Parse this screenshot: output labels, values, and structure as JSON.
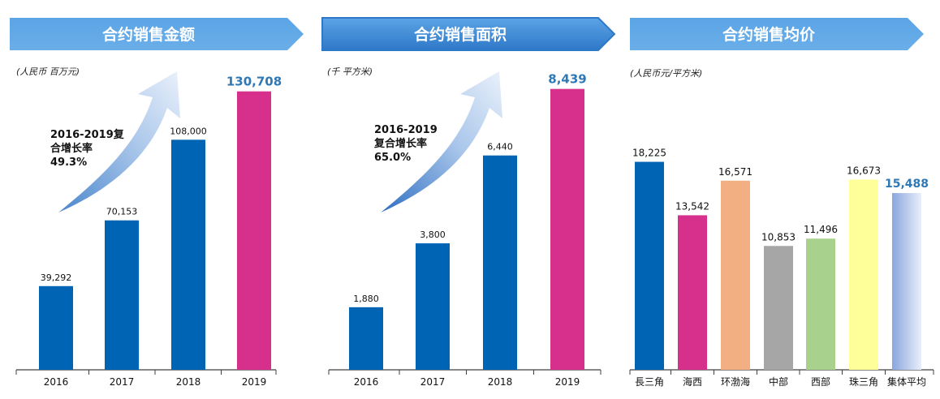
{
  "colors": {
    "header_light": "#5ba4e6",
    "header_dark": "#2f78c8",
    "header_border": "#2f78c8",
    "bar_blue": "#0064b4",
    "bar_pink": "#d6308c",
    "value_highlight": "#2e78b6"
  },
  "panels": [
    {
      "header": "合约销售金额",
      "unit": "(人民币 百万元)",
      "cagr_lines": [
        "2016-2019复",
        "合增长率",
        "49.3%"
      ]
    },
    {
      "header": "合约销售面积",
      "unit": "(千 平方米)",
      "cagr_lines": [
        "2016-2019",
        "复合增长率",
        "65.0%"
      ]
    },
    {
      "header": "合约销售均价",
      "unit": "(人民币元/平方米)",
      "cagr_lines": []
    }
  ],
  "chart_data": [
    {
      "type": "bar",
      "title": "合约销售金额",
      "ylabel": "(人民币 百万元)",
      "categories": [
        "2016",
        "2017",
        "2018",
        "2019"
      ],
      "values": [
        39292,
        70153,
        108000,
        130708
      ],
      "value_labels": [
        "39,292",
        "70,153",
        "108,000",
        "130,708"
      ],
      "bar_colors": [
        "#0064b4",
        "#0064b4",
        "#0064b4",
        "#d6308c"
      ],
      "highlight_last": true,
      "ylim": [
        0,
        150000
      ],
      "grid": false,
      "legend": "none"
    },
    {
      "type": "bar",
      "title": "合约销售面积",
      "ylabel": "(千 平方米)",
      "categories": [
        "2016",
        "2017",
        "2018",
        "2019"
      ],
      "values": [
        1880,
        3800,
        6440,
        8439
      ],
      "value_labels": [
        "1,880",
        "3,800",
        "6,440",
        "8,439"
      ],
      "bar_colors": [
        "#0064b4",
        "#0064b4",
        "#0064b4",
        "#d6308c"
      ],
      "highlight_last": true,
      "ylim": [
        0,
        9600
      ],
      "grid": false,
      "legend": "none"
    },
    {
      "type": "bar",
      "title": "合约销售均价",
      "ylabel": "(人民币元/平方米)",
      "categories": [
        "長三角",
        "海西",
        "环渤海",
        "中部",
        "西部",
        "珠三角",
        "集体平均"
      ],
      "values": [
        18225,
        13542,
        16571,
        10853,
        11496,
        16673,
        15488
      ],
      "value_labels": [
        "18,225",
        "13,542",
        "16,571",
        "10,853",
        "11,496",
        "16,673",
        "15,488"
      ],
      "bar_colors": [
        "#0064b4",
        "#d6308c",
        "#f2b082",
        "#a6a6a6",
        "#a9d18e",
        "#ffff99",
        "gradient"
      ],
      "highlight_last": true,
      "ylim": [
        0,
        28000
      ],
      "grid": false,
      "legend": "none"
    }
  ]
}
